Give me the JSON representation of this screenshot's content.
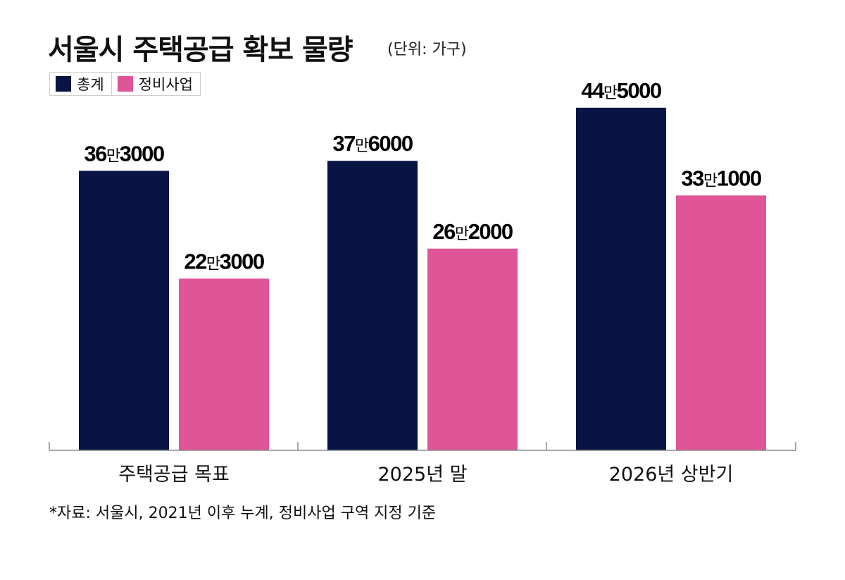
{
  "title": "서울시 주택공급 확보 물량",
  "unit": "(단위: 가구)",
  "source": "*자료: 서울시, 2021년 이후 누계, 정비사업 구역 지정 기준",
  "colors": {
    "total": "#071444",
    "redevelopment": "#df5597"
  },
  "chart_data": {
    "type": "bar",
    "categories": [
      "주택공급 목표",
      "2025년 말",
      "2026년 상반기"
    ],
    "series": [
      {
        "name": "총계",
        "values": [
          363000,
          376000,
          445000
        ],
        "labels": [
          {
            "num": "36",
            "unit": "만",
            "rest": "3000"
          },
          {
            "num": "37",
            "unit": "만",
            "rest": "6000"
          },
          {
            "num": "44",
            "unit": "만",
            "rest": "5000"
          }
        ]
      },
      {
        "name": "정비사업",
        "values": [
          223000,
          262000,
          331000
        ],
        "labels": [
          {
            "num": "22",
            "unit": "만",
            "rest": "3000"
          },
          {
            "num": "26",
            "unit": "만",
            "rest": "2000"
          },
          {
            "num": "33",
            "unit": "만",
            "rest": "1000"
          }
        ]
      }
    ],
    "legend": "top-left",
    "grid": false
  }
}
